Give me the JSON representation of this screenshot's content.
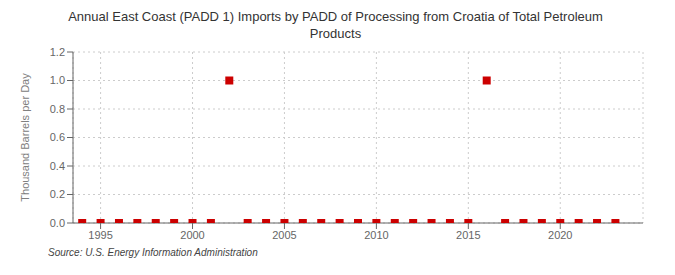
{
  "chart_data": {
    "type": "scatter",
    "title": "Annual East Coast (PADD 1) Imports by PADD of Processing from Croatia of Total Petroleum\nProducts",
    "y_label": "Thousand Barrels per Day",
    "annotations": [
      "Source: U.S. Energy Information Administration"
    ],
    "x": [
      1994,
      1995,
      1996,
      1997,
      1998,
      1999,
      2000,
      2001,
      2002,
      2003,
      2004,
      2005,
      2006,
      2007,
      2008,
      2009,
      2010,
      2011,
      2012,
      2013,
      2014,
      2015,
      2016,
      2017,
      2018,
      2019,
      2020,
      2021,
      2022,
      2023
    ],
    "values": [
      0,
      0,
      0,
      0,
      0,
      0,
      0,
      0,
      1.0,
      0,
      0,
      0,
      0,
      0,
      0,
      0,
      0,
      0,
      0,
      0,
      0,
      0,
      1.0,
      0,
      0,
      0,
      0,
      0,
      0,
      0
    ],
    "color": "#cc0000",
    "marker": "square",
    "xlim": [
      1993.5,
      2024.5
    ],
    "ylim": [
      0.0,
      1.2
    ],
    "xticks": [
      1995,
      2000,
      2005,
      2010,
      2015,
      2020
    ],
    "yticks": [
      {
        "value": 0.0,
        "label": "0.0"
      },
      0.2,
      0.4,
      0.6,
      0.8,
      {
        "value": 1.0,
        "label": "1.0"
      },
      1.2
    ],
    "grid": true
  }
}
